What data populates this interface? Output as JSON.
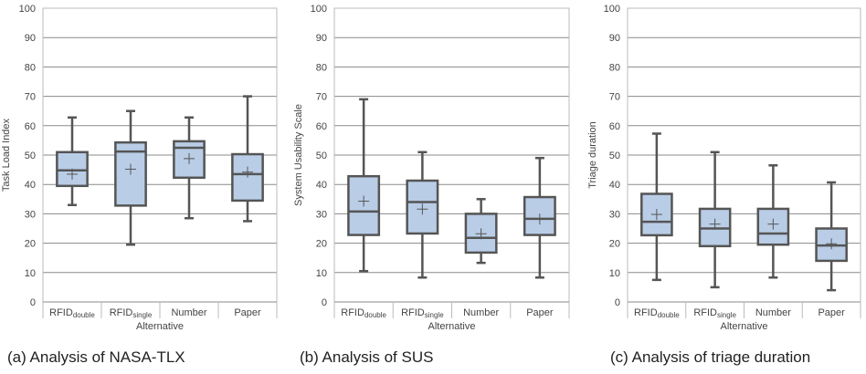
{
  "chart_data": [
    {
      "type": "box",
      "caption": "(a) Analysis of NASA-TLX",
      "ylabel": "Task Load Index",
      "xlabel": "Alternative",
      "ylim": [
        0,
        100
      ],
      "yticks": [
        0,
        10,
        20,
        30,
        40,
        50,
        60,
        70,
        80,
        90,
        100
      ],
      "grid": true,
      "categories": [
        {
          "main": "RFID",
          "sub": "double"
        },
        {
          "main": "RFID",
          "sub": "single"
        },
        {
          "main": "Number",
          "sub": ""
        },
        {
          "main": "Paper",
          "sub": ""
        }
      ],
      "boxes": [
        {
          "min": 33,
          "q1": 39.5,
          "median": 44.8,
          "q3": 51,
          "max": 62.8,
          "mean": 43.5
        },
        {
          "min": 19.5,
          "q1": 32.8,
          "median": 51.2,
          "q3": 54.3,
          "max": 65,
          "mean": 45.2
        },
        {
          "min": 28.5,
          "q1": 42.3,
          "median": 52.5,
          "q3": 54.7,
          "max": 62.8,
          "mean": 48.8
        },
        {
          "min": 27.5,
          "q1": 34.5,
          "median": 43.5,
          "q3": 50.3,
          "max": 70,
          "mean": 44.2
        }
      ]
    },
    {
      "type": "box",
      "caption": "(b) Analysis of SUS",
      "ylabel": "System Usability Scale",
      "xlabel": "Alternative",
      "ylim": [
        0,
        100
      ],
      "yticks": [
        0,
        10,
        20,
        30,
        40,
        50,
        60,
        70,
        80,
        90,
        100
      ],
      "grid": true,
      "categories": [
        {
          "main": "RFID",
          "sub": "double"
        },
        {
          "main": "RFID",
          "sub": "single"
        },
        {
          "main": "Number",
          "sub": ""
        },
        {
          "main": "Paper",
          "sub": ""
        }
      ],
      "boxes": [
        {
          "min": 10.5,
          "q1": 22.8,
          "median": 30.8,
          "q3": 42.8,
          "max": 69,
          "mean": 34.3
        },
        {
          "min": 8.3,
          "q1": 23.3,
          "median": 34,
          "q3": 41.3,
          "max": 51,
          "mean": 31.6
        },
        {
          "min": 13.3,
          "q1": 16.8,
          "median": 21.8,
          "q3": 30,
          "max": 35,
          "mean": 23.2
        },
        {
          "min": 8.3,
          "q1": 22.8,
          "median": 28.3,
          "q3": 35.7,
          "max": 49,
          "mean": 28.2
        }
      ]
    },
    {
      "type": "box",
      "caption": "(c) Analysis of triage duration",
      "ylabel": "Triage duration",
      "xlabel": "Alternative",
      "ylim": [
        0,
        100
      ],
      "yticks": [
        0,
        10,
        20,
        30,
        40,
        50,
        60,
        70,
        80,
        90,
        100
      ],
      "grid": true,
      "categories": [
        {
          "main": "RFID",
          "sub": "double"
        },
        {
          "main": "RFID",
          "sub": "single"
        },
        {
          "main": "Number",
          "sub": ""
        },
        {
          "main": "Paper",
          "sub": ""
        }
      ],
      "boxes": [
        {
          "min": 7.5,
          "q1": 22.7,
          "median": 27.3,
          "q3": 36.8,
          "max": 57.3,
          "mean": 29.8
        },
        {
          "min": 5,
          "q1": 19,
          "median": 25,
          "q3": 31.7,
          "max": 51,
          "mean": 26.5
        },
        {
          "min": 8.3,
          "q1": 19.5,
          "median": 23.3,
          "q3": 31.7,
          "max": 46.5,
          "mean": 26.5
        },
        {
          "min": 4,
          "q1": 14,
          "median": 19.2,
          "q3": 25,
          "max": 40.7,
          "mean": 19.8
        }
      ]
    }
  ],
  "colors": {
    "box_fill": "#b9cde6",
    "box_stroke": "#555555",
    "grid": "#8a8a8a",
    "frame": "#bbbbbb",
    "text": "#444444"
  }
}
